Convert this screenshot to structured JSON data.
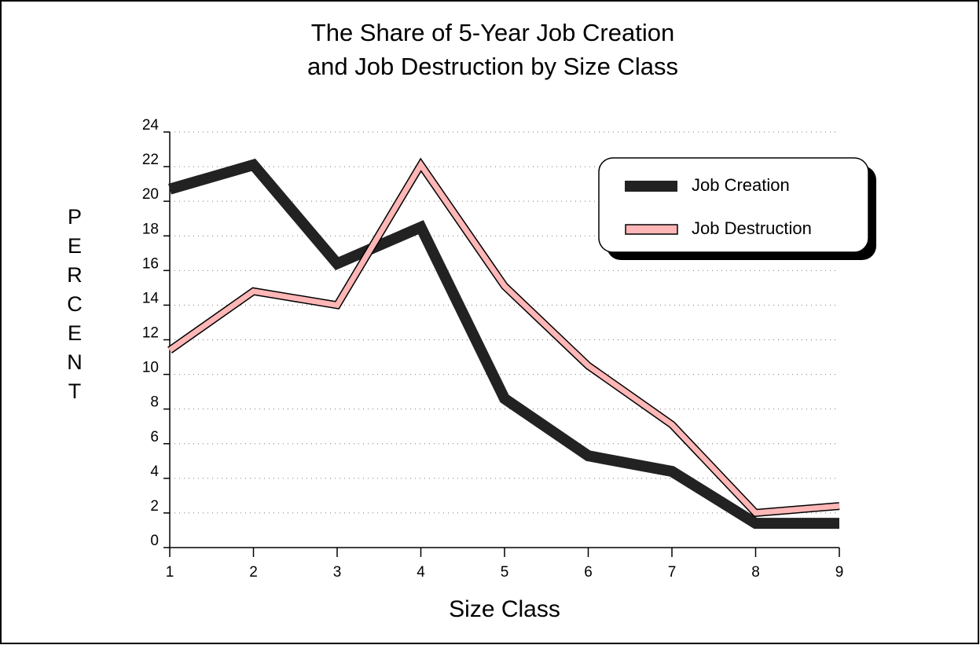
{
  "chart_data": {
    "type": "line",
    "title": [
      "The Share of 5-Year Job Creation",
      "and Job Destruction by Size Class"
    ],
    "x_label": "Size Class",
    "y_label": "PERCENT",
    "x": [
      1,
      2,
      3,
      4,
      5,
      6,
      7,
      8,
      9
    ],
    "xlim": [
      1,
      9
    ],
    "xticks": [
      1,
      2,
      3,
      4,
      5,
      6,
      7,
      8,
      9
    ],
    "ylim": [
      0,
      24
    ],
    "yticks": [
      0,
      2,
      4,
      6,
      8,
      10,
      12,
      14,
      16,
      18,
      20,
      22,
      24
    ],
    "grid": true,
    "legend": "upper right",
    "series": [
      {
        "name": "Job Creation",
        "color": "#222222",
        "values": [
          20.7,
          22.1,
          16.4,
          18.5,
          8.6,
          5.3,
          4.4,
          1.4,
          1.4
        ]
      },
      {
        "name": "Job Destruction",
        "color": "#ffb6b6",
        "values": [
          11.4,
          14.8,
          14.0,
          22.1,
          15.1,
          10.5,
          7.1,
          2.0,
          2.4
        ]
      }
    ]
  }
}
